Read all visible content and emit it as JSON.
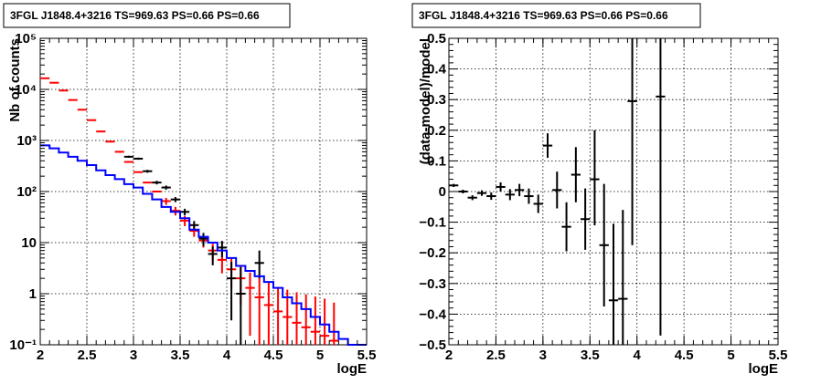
{
  "chart_data": [
    {
      "type": "histogram-errorbar",
      "title": "3FGL J1848.4+3216 TS=969.63 PS=0.66 PS=0.66",
      "xlabel": "logE",
      "ylabel": "Nb of counts",
      "xlim": [
        2,
        5.5
      ],
      "ylim": [
        0.1,
        100000
      ],
      "yscale": "log",
      "grid": true,
      "x_ticks": [
        "2",
        "2.5",
        "3",
        "3.5",
        "4",
        "4.5",
        "5",
        "5.5"
      ],
      "y_ticks": [
        "10⁻¹",
        "1",
        "10",
        "10²",
        "10³",
        "10⁴",
        "10⁵"
      ],
      "bin_width": 0.1,
      "series": [
        {
          "color": "#ff0000",
          "style": "errorbar",
          "x": [
            2.05,
            2.15,
            2.25,
            2.35,
            2.45,
            2.55,
            2.65,
            2.75,
            2.85,
            2.95,
            3.05,
            3.15,
            3.25,
            3.35,
            3.45,
            3.55,
            3.65,
            3.75,
            3.85,
            3.95,
            4.05,
            4.15,
            4.25,
            4.35,
            4.45,
            4.55,
            4.65,
            4.75,
            4.85,
            4.95,
            5.05,
            5.15
          ],
          "y": [
            16500,
            13500,
            9500,
            6200,
            4000,
            2500,
            1500,
            950,
            600,
            380,
            240,
            150,
            100,
            65,
            42,
            27,
            17,
            11,
            7,
            4.6,
            3.0,
            2.0,
            1.3,
            0.85,
            0.6,
            0.45,
            0.35,
            0.27,
            0.22,
            0.18,
            0.15,
            0.12
          ],
          "err_low": [
            0,
            0,
            0,
            0,
            0,
            0,
            0,
            0,
            0,
            0,
            0,
            0,
            0,
            10,
            8,
            6,
            4,
            3,
            2.5,
            2.1,
            1.7,
            1.4,
            1.15,
            0.85,
            0.6,
            0.45,
            0.35,
            0.27,
            0.22,
            0.18,
            0.15,
            0.12
          ],
          "err_high": [
            0,
            0,
            0,
            0,
            0,
            0,
            0,
            0,
            0,
            0,
            0,
            0,
            0,
            10,
            8,
            6,
            4,
            3,
            2.5,
            2.2,
            1.9,
            1.6,
            1.3,
            1.2,
            1.05,
            0.9,
            0.85,
            0.8,
            0.75,
            0.7,
            0.65,
            0.55
          ]
        },
        {
          "color": "#000000",
          "style": "errorbar",
          "x": [
            2.95,
            3.05,
            3.15,
            3.25,
            3.35,
            3.45,
            3.55,
            3.65,
            3.75,
            3.85,
            3.95,
            4.05,
            4.15,
            4.35
          ],
          "y": [
            480,
            440,
            250,
            150,
            120,
            70,
            40,
            22,
            12,
            6,
            8,
            2,
            1,
            4
          ],
          "err_low": [
            22,
            21,
            16,
            12,
            11,
            8,
            6,
            4.5,
            3.5,
            2.4,
            2.8,
            1.7,
            0.9,
            2
          ],
          "err_high": [
            22,
            21,
            16,
            12,
            11,
            8,
            6,
            4.5,
            3.5,
            2.4,
            2.8,
            2.2,
            2.3,
            3
          ]
        },
        {
          "color": "#0000ff",
          "style": "step",
          "x": [
            2.05,
            2.15,
            2.25,
            2.35,
            2.45,
            2.55,
            2.65,
            2.75,
            2.85,
            2.95,
            3.05,
            3.15,
            3.25,
            3.35,
            3.45,
            3.55,
            3.65,
            3.75,
            3.85,
            3.95,
            4.05,
            4.15,
            4.25,
            4.35,
            4.45,
            4.55,
            4.65,
            4.75,
            4.85,
            4.95,
            5.05,
            5.15,
            5.25,
            5.35,
            5.45
          ],
          "y": [
            800,
            700,
            580,
            480,
            400,
            330,
            260,
            210,
            175,
            140,
            120,
            90,
            70,
            50,
            40,
            30,
            18,
            13,
            10,
            7,
            5,
            3.5,
            2.8,
            2.2,
            1.7,
            1.3,
            0.85,
            0.65,
            0.5,
            0.35,
            0.25,
            0.18,
            0.13,
            0.1,
            0.1
          ]
        }
      ]
    },
    {
      "type": "errorbar",
      "title": "3FGL J1848.4+3216 TS=969.63 PS=0.66 PS=0.66",
      "xlabel": "logE",
      "ylabel": "(data-model)/model",
      "xlim": [
        2,
        5.5
      ],
      "ylim": [
        -0.5,
        0.5
      ],
      "yscale": "linear",
      "grid": true,
      "x_ticks": [
        "2",
        "2.5",
        "3",
        "3.5",
        "4",
        "4.5",
        "5",
        "5.5"
      ],
      "y_ticks": [
        "−0.5",
        "−0.4",
        "−0.3",
        "−0.2",
        "−0.1",
        "0",
        "0.1",
        "0.2",
        "0.3",
        "0.4",
        "0.5"
      ],
      "bin_width": 0.1,
      "series": [
        {
          "color": "#000000",
          "style": "errorbar",
          "x": [
            2.05,
            2.15,
            2.25,
            2.35,
            2.45,
            2.55,
            2.65,
            2.75,
            2.85,
            2.95,
            3.05,
            3.15,
            3.25,
            3.35,
            3.45,
            3.55,
            3.65,
            3.75,
            3.85,
            3.95,
            4.25
          ],
          "y": [
            0.02,
            0.0,
            -0.02,
            -0.005,
            -0.015,
            0.015,
            -0.01,
            0.005,
            -0.015,
            -0.04,
            0.15,
            0.005,
            -0.115,
            0.055,
            -0.09,
            0.04,
            -0.175,
            -0.355,
            -0.35,
            0.295,
            0.31
          ],
          "err_low": [
            0.005,
            0.006,
            0.008,
            0.009,
            0.012,
            0.015,
            0.018,
            0.02,
            0.025,
            0.03,
            0.04,
            0.06,
            0.08,
            0.09,
            0.1,
            0.15,
            0.2,
            0.25,
            0.29,
            0.47,
            0.78
          ],
          "err_high": [
            0.005,
            0.006,
            0.008,
            0.009,
            0.012,
            0.015,
            0.018,
            0.02,
            0.025,
            0.03,
            0.04,
            0.06,
            0.08,
            0.09,
            0.1,
            0.16,
            0.2,
            0.25,
            0.29,
            0.47,
            0.78
          ]
        }
      ]
    }
  ]
}
